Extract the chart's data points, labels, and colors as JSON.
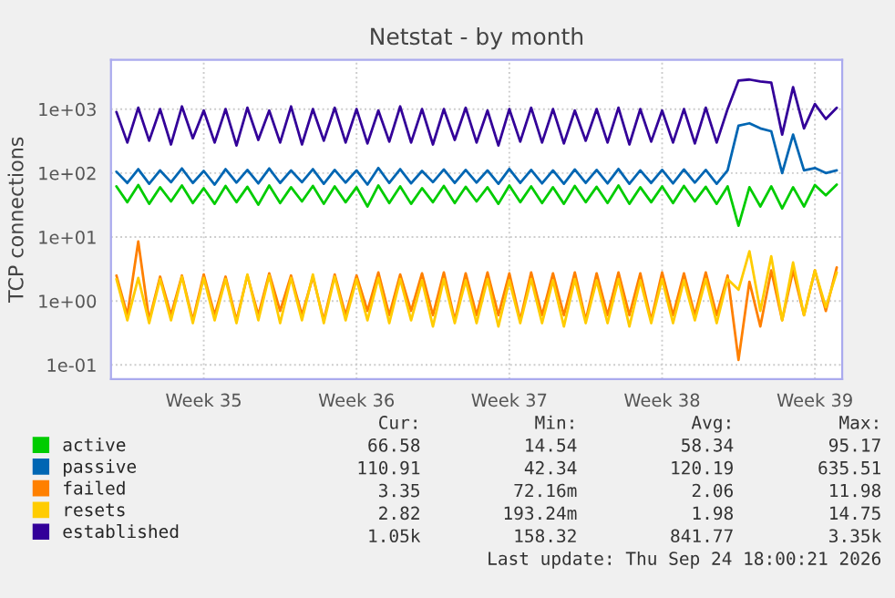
{
  "chart_data": {
    "type": "line",
    "title": "Netstat - by month",
    "ylabel": "TCP connections",
    "log": "y",
    "categories": [
      null,
      null,
      null,
      null,
      null,
      null,
      null,
      null,
      "Week 35",
      null,
      null,
      null,
      null,
      null,
      null,
      null,
      null,
      null,
      null,
      null,
      null,
      null,
      "Week 36",
      null,
      null,
      null,
      null,
      null,
      null,
      null,
      null,
      null,
      null,
      null,
      null,
      null,
      "Week 37",
      null,
      null,
      null,
      null,
      null,
      null,
      null,
      null,
      null,
      null,
      null,
      null,
      null,
      "Week 38",
      null,
      null,
      null,
      null,
      null,
      null,
      null,
      null,
      null,
      null,
      null,
      null,
      null,
      "Week 39",
      null,
      null
    ],
    "series": [
      {
        "name": "active",
        "color": "#00cc00",
        "values": [
          62,
          35,
          65,
          33,
          60,
          36,
          64,
          34,
          58,
          33,
          63,
          35,
          61,
          32,
          64,
          34,
          60,
          36,
          63,
          33,
          62,
          35,
          60,
          30,
          64,
          34,
          62,
          33,
          58,
          35,
          63,
          34,
          61,
          36,
          60,
          33,
          64,
          35,
          62,
          34,
          60,
          33,
          63,
          35,
          61,
          34,
          64,
          33,
          60,
          35,
          62,
          34,
          63,
          36,
          61,
          33,
          62,
          15,
          60,
          30,
          62,
          28,
          60,
          30,
          65,
          45,
          66
        ]
      },
      {
        "name": "passive",
        "color": "#0066b3",
        "values": [
          105,
          70,
          115,
          68,
          110,
          72,
          118,
          70,
          108,
          66,
          115,
          71,
          112,
          69,
          118,
          70,
          110,
          72,
          115,
          68,
          112,
          71,
          110,
          66,
          120,
          70,
          115,
          69,
          108,
          72,
          114,
          70,
          112,
          71,
          110,
          68,
          116,
          70,
          112,
          69,
          110,
          68,
          114,
          70,
          112,
          69,
          116,
          68,
          110,
          70,
          112,
          69,
          114,
          71,
          112,
          68,
          110,
          550,
          600,
          500,
          450,
          100,
          400,
          110,
          120,
          100,
          110
        ]
      },
      {
        "name": "failed",
        "color": "#ff8000",
        "values": [
          2.5,
          0.6,
          8.5,
          0.5,
          2.4,
          0.6,
          2.5,
          0.5,
          2.6,
          0.6,
          2.4,
          0.5,
          2.5,
          0.6,
          2.7,
          0.7,
          2.5,
          0.6,
          2.4,
          0.5,
          2.6,
          0.6,
          2.5,
          0.7,
          2.8,
          0.6,
          2.6,
          0.7,
          2.7,
          0.6,
          2.8,
          0.5,
          2.7,
          0.6,
          2.8,
          0.6,
          2.7,
          0.5,
          2.8,
          0.6,
          2.7,
          0.6,
          2.8,
          0.5,
          2.7,
          0.6,
          2.8,
          0.6,
          2.7,
          0.5,
          2.8,
          0.6,
          2.7,
          0.6,
          2.8,
          0.6,
          2.5,
          0.12,
          2.0,
          0.4,
          3.0,
          0.5,
          3.0,
          0.6,
          3.0,
          0.7,
          3.35
        ]
      },
      {
        "name": "resets",
        "color": "#ffcc00",
        "values": [
          2.2,
          0.5,
          2.3,
          0.45,
          2.2,
          0.5,
          2.4,
          0.45,
          2.3,
          0.5,
          2.2,
          0.45,
          2.6,
          0.5,
          2.5,
          0.45,
          2.3,
          0.5,
          2.6,
          0.45,
          2.4,
          0.5,
          2.2,
          0.5,
          2.3,
          0.45,
          2.2,
          0.5,
          2.1,
          0.4,
          2.2,
          0.45,
          2.1,
          0.45,
          2.2,
          0.4,
          2.1,
          0.45,
          2.2,
          0.45,
          2.1,
          0.4,
          2.2,
          0.45,
          2.1,
          0.45,
          2.2,
          0.4,
          2.1,
          0.45,
          2.2,
          0.45,
          2.1,
          0.5,
          2.2,
          0.45,
          2.2,
          1.5,
          6.0,
          0.7,
          5.0,
          0.5,
          4.0,
          0.6,
          3.0,
          0.8,
          2.8
        ]
      },
      {
        "name": "established",
        "color": "#330099",
        "values": [
          900,
          300,
          1050,
          320,
          1000,
          280,
          1100,
          350,
          950,
          300,
          1000,
          270,
          1050,
          330,
          950,
          300,
          1100,
          280,
          1000,
          320,
          1050,
          300,
          1000,
          290,
          950,
          310,
          1100,
          300,
          1000,
          280,
          1000,
          330,
          1050,
          300,
          950,
          270,
          1000,
          310,
          1050,
          300,
          1000,
          290,
          950,
          320,
          1000,
          300,
          1050,
          280,
          1000,
          310,
          950,
          300,
          1000,
          290,
          1050,
          300,
          1000,
          2800,
          2900,
          2700,
          2600,
          400,
          2200,
          500,
          1200,
          700,
          1050
        ]
      }
    ],
    "ylim": [
      0.06,
      5900
    ],
    "yticks": [
      {
        "value": 0.1,
        "label": "1e-01"
      },
      {
        "value": 1,
        "label": "1e+00"
      },
      {
        "value": 10,
        "label": "1e+01"
      },
      {
        "value": 100,
        "label": "1e+02"
      },
      {
        "value": 1000,
        "label": "1e+03"
      }
    ],
    "grid": true,
    "legend": "bottom",
    "line_style": "solid",
    "marker": "none",
    "annotations": [
      "Cur:",
      "Min:",
      "Avg:",
      "Max:",
      "66.58",
      "14.54",
      "58.34",
      "95.17",
      "110.91",
      "42.34",
      "120.19",
      "635.51",
      "3.35",
      "72.16m",
      "2.06",
      "11.98",
      "2.82",
      "193.24m",
      "1.98",
      "14.75",
      "1.05k",
      "158.32",
      "841.77",
      "3.35k",
      "Last update: Thu Sep 24 18:00:21 2026"
    ]
  }
}
